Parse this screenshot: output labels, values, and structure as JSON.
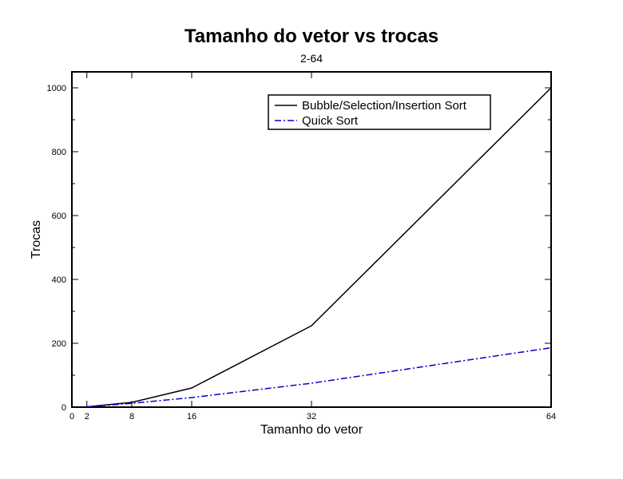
{
  "chart_data": {
    "type": "line",
    "title": "Tamanho do vetor vs trocas",
    "subtitle": "2-64",
    "xlabel": "Tamanho do vetor",
    "ylabel": "Trocas",
    "xlim": [
      0,
      64
    ],
    "ylim": [
      0,
      1050
    ],
    "xticks": [
      0,
      2,
      8,
      16,
      32,
      64
    ],
    "yticks": [
      0,
      200,
      400,
      600,
      800,
      1000
    ],
    "grid": false,
    "legend_position": "top-right",
    "series": [
      {
        "name": "Bubble/Selection/Insertion Sort",
        "color": "#000000",
        "style": "solid",
        "x": [
          2,
          8,
          16,
          32,
          64
        ],
        "y": [
          1,
          15,
          60,
          255,
          1000
        ]
      },
      {
        "name": "Quick Sort",
        "color": "#0000cc",
        "style": "dash-dot",
        "x": [
          2,
          8,
          16,
          32,
          64
        ],
        "y": [
          1,
          12,
          30,
          75,
          186
        ]
      }
    ]
  }
}
